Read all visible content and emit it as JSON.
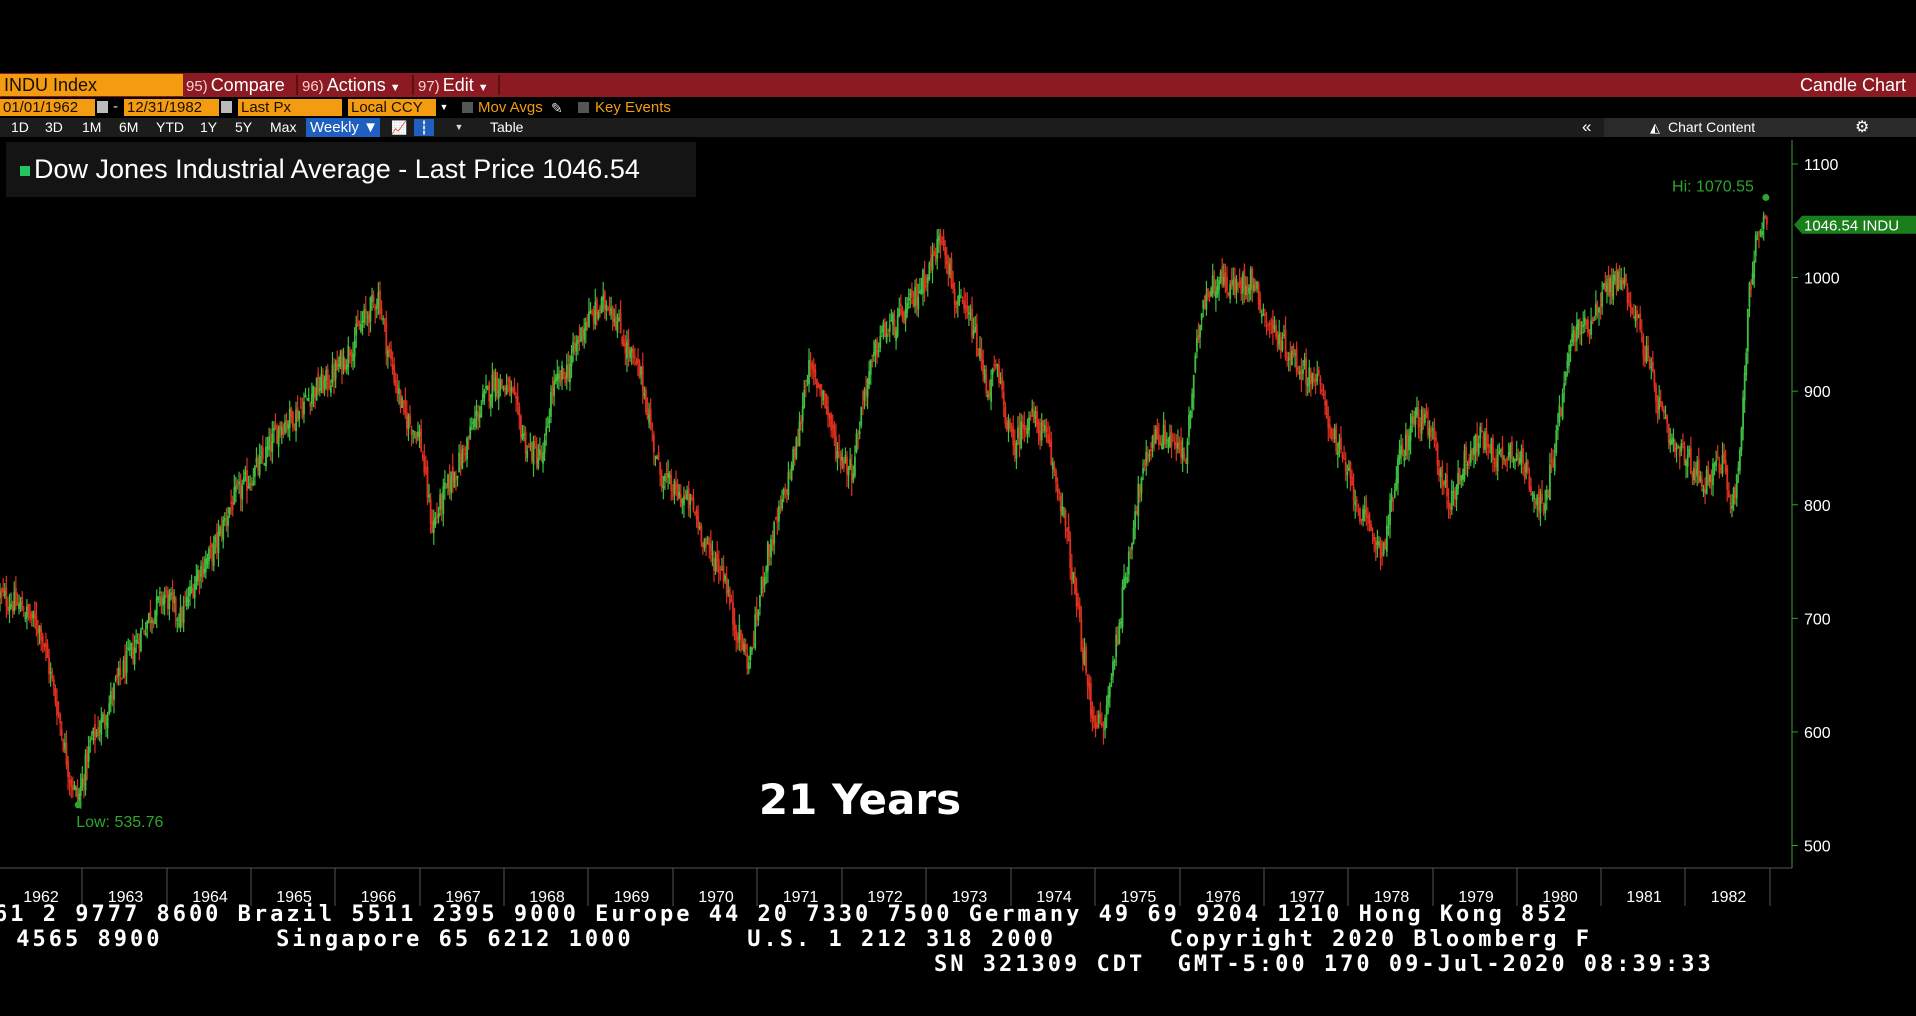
{
  "toolbar": {
    "security": "INDU Index",
    "compare_num": "95)",
    "compare_label": "Compare",
    "actions_num": "96)",
    "actions_label": "Actions",
    "edit_num": "97)",
    "edit_label": "Edit",
    "chart_type": "Candle Chart"
  },
  "settings": {
    "start_date": "01/01/1962",
    "end_date": "12/31/1982",
    "dash": "-",
    "field": "Last Px",
    "currency": "Local CCY",
    "mov_avgs": "Mov Avgs",
    "key_events": "Key Events"
  },
  "periods": [
    "1D",
    "3D",
    "1M",
    "6M",
    "YTD",
    "1Y",
    "5Y",
    "Max"
  ],
  "frequency": "Weekly ▼",
  "table_label": "Table",
  "collapse_icon": "«",
  "chart_content": "Chart Content",
  "legend_text": "Dow Jones Industrial Average - Last Price 1046.54",
  "overlay_text": "21 Years",
  "colors": {
    "up": "#3fbf3f",
    "down": "#e0301e",
    "legend": "#22c55e",
    "axis_green": "#2ea52e"
  },
  "chart_data": {
    "type": "line",
    "title": "Dow Jones Industrial Average - Last Price 1046.54",
    "x_labels": [
      "1962",
      "1963",
      "1964",
      "1965",
      "1966",
      "1967",
      "1968",
      "1969",
      "1970",
      "1971",
      "1972",
      "1973",
      "1974",
      "1975",
      "1976",
      "1977",
      "1978",
      "1979",
      "1980",
      "1981",
      "1982"
    ],
    "y_ticks": [
      500,
      600,
      700,
      800,
      900,
      1000,
      1100
    ],
    "ylim": [
      480,
      1120
    ],
    "xlim": [
      1961.5,
      1983.0
    ],
    "hi_label": "Hi: 1070.55",
    "low_label": "Low: 535.76",
    "last_label": "1046.54 INDU",
    "hi": {
      "x": 1982.95,
      "y": 1070.55
    },
    "low": {
      "x": 1962.45,
      "y": 535.76
    },
    "last": 1046.54,
    "series": [
      {
        "x": [
          1961.5,
          1961.75,
          1962.0,
          1962.2,
          1962.35,
          1962.45,
          1962.6,
          1962.75,
          1962.9,
          1963.1,
          1963.3,
          1963.5,
          1963.7,
          1963.9,
          1964.1,
          1964.3,
          1964.5,
          1964.7,
          1964.9,
          1965.1,
          1965.3,
          1965.5,
          1965.7,
          1965.9,
          1966.1,
          1966.2,
          1966.4,
          1966.6,
          1966.75,
          1966.9,
          1967.1,
          1967.3,
          1967.5,
          1967.7,
          1967.9,
          1968.1,
          1968.2,
          1968.4,
          1968.6,
          1968.9,
          1969.1,
          1969.3,
          1969.5,
          1969.7,
          1969.9,
          1970.1,
          1970.3,
          1970.4,
          1970.6,
          1970.8,
          1971.0,
          1971.2,
          1971.3,
          1971.5,
          1971.65,
          1971.85,
          1972.0,
          1972.2,
          1972.4,
          1972.6,
          1972.8,
          1972.95,
          1973.1,
          1973.3,
          1973.5,
          1973.6,
          1973.8,
          1974.0,
          1974.2,
          1974.4,
          1974.6,
          1974.75,
          1974.9,
          1975.1,
          1975.3,
          1975.5,
          1975.7,
          1975.9,
          1976.1,
          1976.3,
          1976.5,
          1976.7,
          1976.9,
          1977.1,
          1977.3,
          1977.5,
          1977.7,
          1977.9,
          1978.1,
          1978.3,
          1978.5,
          1978.7,
          1978.9,
          1979.1,
          1979.3,
          1979.5,
          1979.7,
          1979.9,
          1980.1,
          1980.25,
          1980.4,
          1980.6,
          1980.8,
          1981.0,
          1981.2,
          1981.4,
          1981.6,
          1981.8,
          1982.0,
          1982.2,
          1982.4,
          1982.55,
          1982.65,
          1982.75,
          1982.85,
          1982.95
        ],
        "y": [
          720,
          710,
          690,
          620,
          560,
          540,
          590,
          610,
          640,
          670,
          700,
          720,
          700,
          740,
          760,
          800,
          820,
          840,
          870,
          880,
          900,
          910,
          930,
          960,
          985,
          940,
          880,
          860,
          780,
          810,
          840,
          880,
          910,
          900,
          850,
          840,
          900,
          920,
          960,
          980,
          940,
          910,
          830,
          810,
          800,
          760,
          740,
          700,
          660,
          750,
          800,
          860,
          920,
          900,
          850,
          830,
          900,
          950,
          960,
          980,
          1010,
          1040,
          980,
          960,
          900,
          920,
          850,
          880,
          860,
          800,
          700,
          620,
          600,
          700,
          800,
          860,
          860,
          840,
          980,
          1000,
          990,
          1000,
          960,
          940,
          920,
          910,
          860,
          820,
          780,
          760,
          840,
          880,
          860,
          800,
          840,
          860,
          840,
          850,
          820,
          790,
          860,
          950,
          960,
          990,
          1000,
          960,
          900,
          850,
          840,
          820,
          840,
          800,
          860,
          990,
          1040,
          1046
        ]
      }
    ]
  },
  "footer": {
    "line1": "61 2 9777 8600 Brazil 5511 2395 9000 Europe 44 20 7330 7500 Germany 49 69 9204 1210 Hong Kong 852",
    "line2": " 4565 8900       Singapore 65 6212 1000       U.S. 1 212 318 2000       Copyright 2020 Bloomberg F",
    "line3": "SN 321309 CDT  GMT-5:00 170 09-Jul-2020 08:39:33"
  }
}
